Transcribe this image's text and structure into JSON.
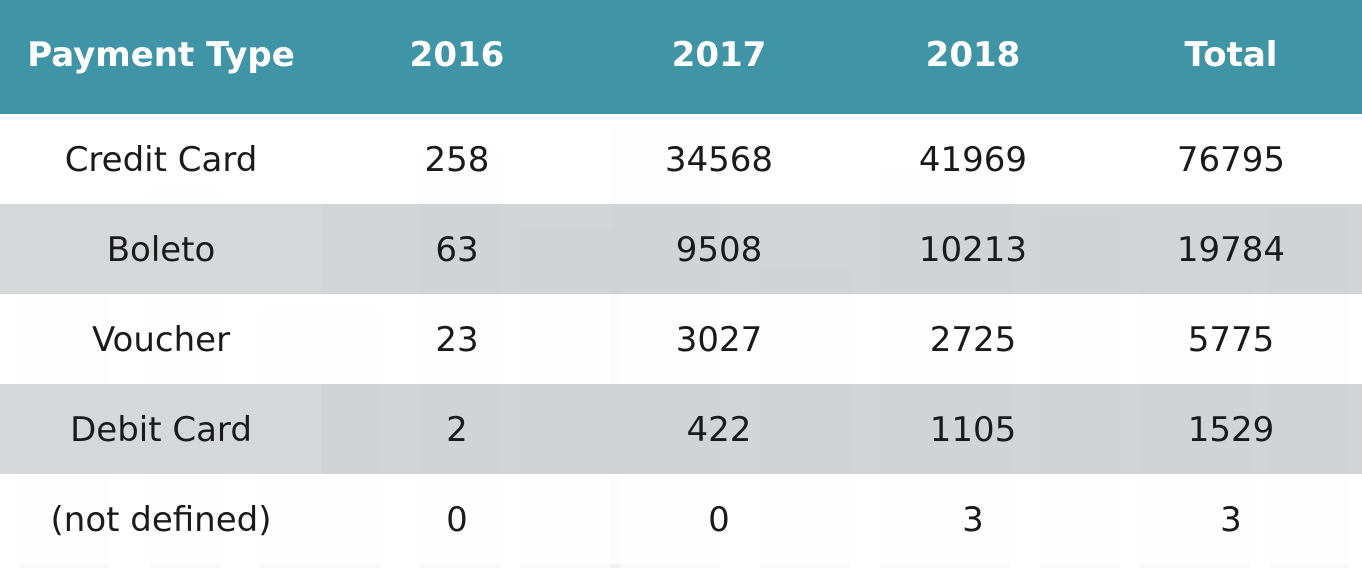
{
  "table": {
    "headers": [
      "Payment Type",
      "2016",
      "2017",
      "2018",
      "Total"
    ],
    "rows": [
      {
        "type": "Credit Card",
        "y2016": "258",
        "y2017": "34568",
        "y2018": "41969",
        "total": "76795"
      },
      {
        "type": "Boleto",
        "y2016": "63",
        "y2017": "9508",
        "y2018": "10213",
        "total": "19784"
      },
      {
        "type": "Voucher",
        "y2016": "23",
        "y2017": "3027",
        "y2018": "2725",
        "total": "5775"
      },
      {
        "type": "Debit Card",
        "y2016": "2",
        "y2017": "422",
        "y2018": "1105",
        "total": "1529"
      },
      {
        "type": "(not defined)",
        "y2016": "0",
        "y2017": "0",
        "y2018": "3",
        "total": "3"
      }
    ]
  },
  "colors": {
    "header_bg": "#3f94a5",
    "header_text": "#ffffff",
    "row_alt_bg": "#c8cbcf",
    "body_text": "#1a1a1a"
  }
}
